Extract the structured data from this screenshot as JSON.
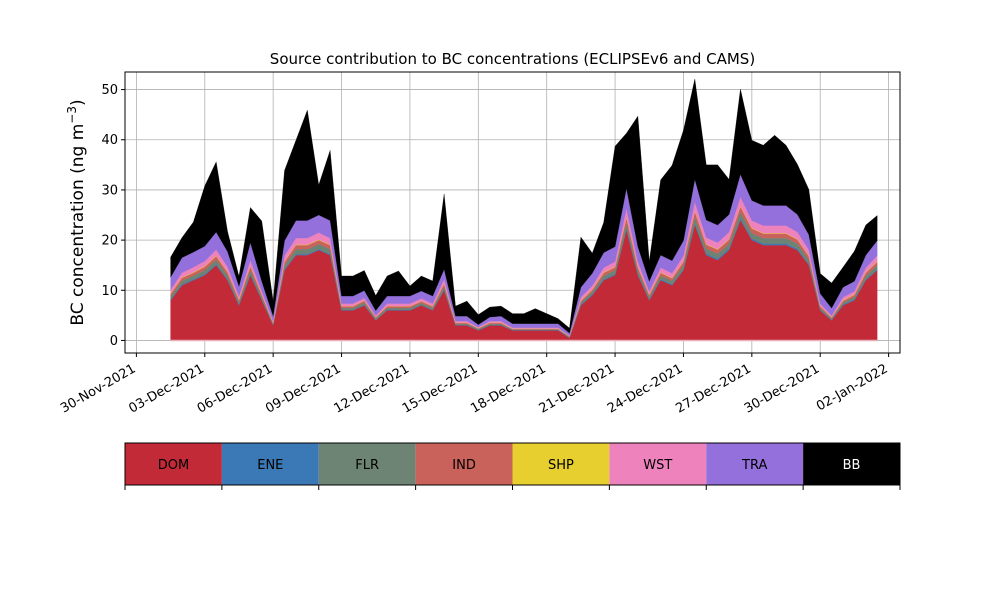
{
  "chart_data": {
    "type": "area",
    "stacked": true,
    "title": "Source contribution to BC concentrations (ECLIPSEv6 and CAMS)",
    "ylabel": "BC concentration (ng m",
    "ylabel_sup": "−3",
    "ylabel_close": ")",
    "xlabel": "",
    "ylim": [
      -2.5,
      53.5
    ],
    "xlim": [
      "2021-11-29T12:00",
      "2022-01-02T12:00"
    ],
    "yticks": [
      0,
      10,
      20,
      30,
      40,
      50
    ],
    "xticks": [
      "2021-11-30",
      "2021-12-03",
      "2021-12-06",
      "2021-12-09",
      "2021-12-12",
      "2021-12-15",
      "2021-12-18",
      "2021-12-21",
      "2021-12-24",
      "2021-12-27",
      "2021-12-30",
      "2022-01-02"
    ],
    "xtick_labels": [
      "30-Nov-2021",
      "03-Dec-2021",
      "06-Dec-2021",
      "09-Dec-2021",
      "12-Dec-2021",
      "15-Dec-2021",
      "18-Dec-2021",
      "21-Dec-2021",
      "24-Dec-2021",
      "27-Dec-2021",
      "30-Dec-2021",
      "02-Jan-2022"
    ],
    "grid": true,
    "x": [
      "2021-12-01T12:00",
      "2021-12-02T00:00",
      "2021-12-02T12:00",
      "2021-12-03T00:00",
      "2021-12-03T12:00",
      "2021-12-04T00:00",
      "2021-12-04T12:00",
      "2021-12-05T00:00",
      "2021-12-05T12:00",
      "2021-12-06T00:00",
      "2021-12-06T12:00",
      "2021-12-07T00:00",
      "2021-12-07T12:00",
      "2021-12-08T00:00",
      "2021-12-08T12:00",
      "2021-12-09T00:00",
      "2021-12-09T12:00",
      "2021-12-10T00:00",
      "2021-12-10T12:00",
      "2021-12-11T00:00",
      "2021-12-11T12:00",
      "2021-12-12T00:00",
      "2021-12-12T12:00",
      "2021-12-13T00:00",
      "2021-12-13T12:00",
      "2021-12-14T00:00",
      "2021-12-14T12:00",
      "2021-12-15T00:00",
      "2021-12-15T12:00",
      "2021-12-16T00:00",
      "2021-12-16T12:00",
      "2021-12-17T00:00",
      "2021-12-17T12:00",
      "2021-12-18T00:00",
      "2021-12-18T12:00",
      "2021-12-19T00:00",
      "2021-12-19T12:00",
      "2021-12-20T00:00",
      "2021-12-20T12:00",
      "2021-12-21T00:00",
      "2021-12-21T12:00",
      "2021-12-22T00:00",
      "2021-12-22T12:00",
      "2021-12-23T00:00",
      "2021-12-23T12:00",
      "2021-12-24T00:00",
      "2021-12-24T12:00",
      "2021-12-25T00:00",
      "2021-12-25T12:00",
      "2021-12-26T00:00",
      "2021-12-26T12:00",
      "2021-12-27T00:00",
      "2021-12-27T12:00",
      "2021-12-28T00:00",
      "2021-12-28T12:00",
      "2021-12-29T00:00",
      "2021-12-29T12:00",
      "2021-12-30T00:00",
      "2021-12-30T12:00",
      "2021-12-31T00:00",
      "2021-12-31T12:00",
      "2022-01-01T00:00",
      "2022-01-01T12:00"
    ],
    "series": [
      {
        "name": "DOM",
        "color": "#c32a38",
        "values": [
          8,
          11,
          12,
          13,
          15,
          12,
          7,
          13,
          8,
          3,
          14,
          17,
          17,
          18,
          17,
          6,
          6,
          7,
          4,
          6,
          6,
          6,
          7,
          6,
          10,
          3,
          3,
          2,
          3,
          3,
          2,
          2,
          2,
          2,
          2,
          0.5,
          7,
          9,
          12,
          13,
          22,
          13,
          8,
          12,
          11,
          14,
          23,
          17,
          16,
          18,
          24,
          20,
          19,
          19,
          19,
          18,
          15,
          6,
          4,
          7,
          8,
          12,
          14
        ]
      },
      {
        "name": "ENE",
        "color": "#3a78b6",
        "values": [
          0.2,
          0.2,
          0.2,
          0.2,
          0.2,
          0.2,
          0.2,
          0.2,
          0.2,
          0.1,
          0.2,
          0.2,
          0.2,
          0.2,
          0.2,
          0.1,
          0.1,
          0.1,
          0.1,
          0.1,
          0.1,
          0.1,
          0.1,
          0.1,
          0.2,
          0.1,
          0.1,
          0.1,
          0.1,
          0.1,
          0.1,
          0.1,
          0.1,
          0.1,
          0.1,
          0.1,
          0.2,
          0.2,
          0.2,
          0.2,
          0.3,
          0.2,
          0.2,
          0.2,
          0.2,
          0.2,
          0.3,
          0.3,
          0.3,
          0.3,
          0.3,
          0.3,
          0.3,
          0.3,
          0.3,
          0.3,
          0.2,
          0.1,
          0.1,
          0.2,
          0.2,
          0.2,
          0.2
        ]
      },
      {
        "name": "FLR",
        "color": "#6d8373",
        "values": [
          0.6,
          0.7,
          0.7,
          0.8,
          0.9,
          0.8,
          0.5,
          0.9,
          0.5,
          0.2,
          0.8,
          1,
          1,
          1,
          1,
          0.4,
          0.4,
          0.5,
          0.3,
          0.4,
          0.4,
          0.4,
          0.4,
          0.4,
          0.6,
          0.2,
          0.2,
          0.2,
          0.2,
          0.2,
          0.1,
          0.1,
          0.1,
          0.1,
          0.1,
          0.1,
          0.4,
          0.5,
          0.7,
          0.8,
          1.2,
          0.8,
          0.5,
          0.7,
          0.7,
          0.8,
          1.3,
          1,
          1,
          1,
          1.3,
          1.1,
          1.1,
          1.1,
          1.1,
          1,
          0.9,
          0.4,
          0.3,
          0.4,
          0.5,
          0.7,
          0.8
        ]
      },
      {
        "name": "IND",
        "color": "#c9625a",
        "values": [
          0.5,
          0.6,
          0.6,
          0.7,
          0.7,
          0.6,
          0.4,
          0.7,
          0.4,
          0.2,
          0.7,
          0.8,
          0.8,
          0.8,
          0.8,
          0.3,
          0.3,
          0.3,
          0.2,
          0.3,
          0.3,
          0.3,
          0.3,
          0.3,
          0.5,
          0.2,
          0.2,
          0.1,
          0.2,
          0.2,
          0.1,
          0.1,
          0.1,
          0.1,
          0.1,
          0.1,
          0.3,
          0.4,
          0.6,
          0.6,
          1,
          0.6,
          0.4,
          0.6,
          0.5,
          0.7,
          1.1,
          0.8,
          0.8,
          0.8,
          1.1,
          0.9,
          0.9,
          0.9,
          0.9,
          0.8,
          0.7,
          0.3,
          0.2,
          0.3,
          0.4,
          0.6,
          0.7
        ]
      },
      {
        "name": "SHP",
        "color": "#e6cf2e",
        "values": [
          0.1,
          0.1,
          0.1,
          0.1,
          0.1,
          0.1,
          0.1,
          0.1,
          0.1,
          0.05,
          0.1,
          0.1,
          0.1,
          0.1,
          0.1,
          0.05,
          0.05,
          0.05,
          0.05,
          0.05,
          0.05,
          0.05,
          0.05,
          0.05,
          0.1,
          0.05,
          0.05,
          0.05,
          0.05,
          0.05,
          0.05,
          0.05,
          0.05,
          0.05,
          0.05,
          0.05,
          0.1,
          0.1,
          0.1,
          0.1,
          0.1,
          0.1,
          0.1,
          0.1,
          0.1,
          0.1,
          0.1,
          0.1,
          0.1,
          0.1,
          0.1,
          0.1,
          0.1,
          0.1,
          0.1,
          0.1,
          0.1,
          0.05,
          0.05,
          0.1,
          0.1,
          0.1,
          0.1
        ]
      },
      {
        "name": "WST",
        "color": "#ee82bd",
        "values": [
          0.7,
          0.9,
          1,
          1,
          1.2,
          1,
          0.6,
          1.1,
          0.6,
          0.3,
          1.1,
          1.3,
          1.3,
          1.4,
          1.3,
          0.5,
          0.5,
          0.5,
          0.3,
          0.5,
          0.5,
          0.5,
          0.5,
          0.5,
          0.8,
          0.3,
          0.3,
          0.2,
          0.3,
          0.3,
          0.2,
          0.2,
          0.2,
          0.2,
          0.2,
          0.1,
          0.6,
          0.7,
          0.9,
          1,
          1.7,
          1,
          0.6,
          0.9,
          0.9,
          1.1,
          1.8,
          1.3,
          1.3,
          1.4,
          1.8,
          1.5,
          1.5,
          1.5,
          1.5,
          1.4,
          1.2,
          0.5,
          0.3,
          0.6,
          0.6,
          0.9,
          1.1
        ]
      },
      {
        "name": "TRA",
        "color": "#9370db",
        "values": [
          2.5,
          3,
          3,
          3,
          3.5,
          3,
          2,
          3.5,
          2,
          1,
          3,
          3.5,
          3.5,
          3.5,
          3.5,
          1.5,
          1.5,
          1.5,
          1,
          1.5,
          1.5,
          1.5,
          1.5,
          1.5,
          2,
          1,
          1,
          0.5,
          0.8,
          1,
          0.8,
          0.8,
          0.8,
          0.8,
          0.8,
          0.5,
          2,
          2.5,
          3,
          3,
          4,
          3,
          2,
          2.5,
          2.5,
          3,
          4.5,
          3.5,
          3.5,
          3.5,
          4.5,
          4,
          4,
          4,
          4,
          3.5,
          3,
          2,
          1.5,
          2,
          2,
          2.5,
          3
        ]
      },
      {
        "name": "BB",
        "color": "#000000",
        "values": [
          4,
          4,
          6,
          12,
          14,
          4,
          2,
          7,
          12,
          3,
          14,
          16,
          22,
          6,
          14,
          4,
          4,
          4,
          3,
          4,
          5,
          2,
          3,
          3,
          15,
          2,
          3,
          2,
          2,
          2,
          2,
          2,
          3,
          2,
          1,
          1,
          10,
          4,
          6,
          20,
          11,
          26,
          4,
          15,
          19,
          22,
          20,
          11,
          12,
          7,
          17,
          12,
          12,
          14,
          12,
          10,
          9,
          4,
          5,
          4,
          6,
          6,
          5
        ]
      }
    ],
    "legend": {
      "placement": "below",
      "labels": [
        "DOM",
        "ENE",
        "FLR",
        "IND",
        "SHP",
        "WST",
        "TRA",
        "BB"
      ]
    }
  }
}
